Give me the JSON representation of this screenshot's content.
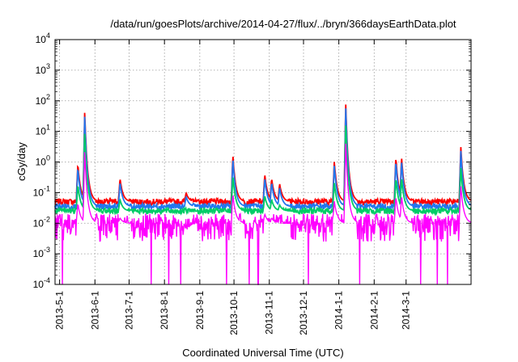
{
  "chart_data": {
    "type": "line",
    "title": "/data/run/goesPlots/archive/2014-04-27/flux/../bryn/366daysEarthData.plot",
    "xlabel": "Coordinated Universal Time (UTC)",
    "ylabel": "cGy/day",
    "y_scale": "log",
    "ylim": [
      0.0001,
      10000
    ],
    "xlim": [
      "2013-04-27",
      "2014-04-27"
    ],
    "grid": true,
    "legend": "none",
    "y_ticks": [
      {
        "value": 0.0001,
        "base": "10",
        "exp": "-4"
      },
      {
        "value": 0.001,
        "base": "10",
        "exp": "-3"
      },
      {
        "value": 0.01,
        "base": "10",
        "exp": "-2"
      },
      {
        "value": 0.1,
        "base": "10",
        "exp": "-1"
      },
      {
        "value": 1,
        "base": "10",
        "exp": "0"
      },
      {
        "value": 10,
        "base": "10",
        "exp": "1"
      },
      {
        "value": 100,
        "base": "10",
        "exp": "2"
      },
      {
        "value": 1000,
        "base": "10",
        "exp": "3"
      },
      {
        "value": 10000,
        "base": "10",
        "exp": "4"
      }
    ],
    "x_ticks": [
      "2013-5-1",
      "2013-6-1",
      "2013-7-1",
      "2013-8-1",
      "2013-9-1",
      "2013-10-1",
      "2013-11-1",
      "2013-12-1",
      "2014-1-1",
      "2014-2-1",
      "2014-3-1"
    ],
    "baseline_levels": {
      "red": 0.05,
      "blue": 0.035,
      "green": 0.025,
      "magenta": 0.01
    },
    "events": [
      {
        "date": "2013-05-17",
        "peak": 0.9
      },
      {
        "date": "2013-05-23",
        "peak": 50
      },
      {
        "date": "2013-06-23",
        "peak": 0.3
      },
      {
        "date": "2013-08-20",
        "peak": 0.1
      },
      {
        "date": "2013-09-30",
        "peak": 1.8
      },
      {
        "date": "2013-10-28",
        "peak": 0.4
      },
      {
        "date": "2013-11-03",
        "peak": 0.3
      },
      {
        "date": "2013-11-10",
        "peak": 0.2
      },
      {
        "date": "2013-12-28",
        "peak": 1.1
      },
      {
        "date": "2014-01-07",
        "peak": 100
      },
      {
        "date": "2014-02-20",
        "peak": 1.5
      },
      {
        "date": "2014-02-25",
        "peak": 1.6
      },
      {
        "date": "2014-04-18",
        "peak": 3.5
      }
    ],
    "series": [
      {
        "color": "#ff0000"
      },
      {
        "color": "#2277ee"
      },
      {
        "color": "#00cc66"
      },
      {
        "color": "#ff00ff"
      }
    ]
  }
}
